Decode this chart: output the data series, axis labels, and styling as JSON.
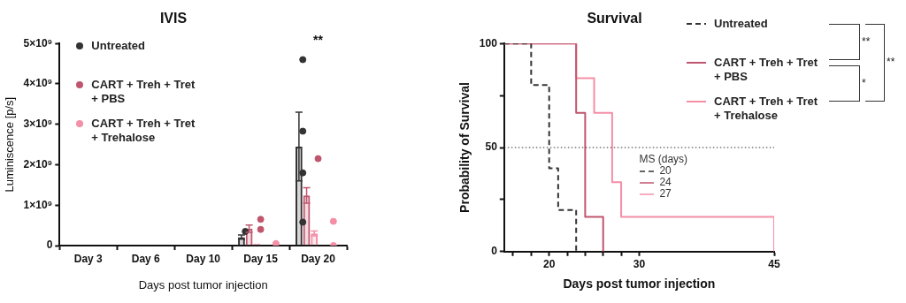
{
  "chart_data": [
    {
      "type": "bar",
      "title": "IVIS",
      "xlabel": "Days post tumor injection",
      "ylabel": "Luminiscence [p/s]",
      "categories": [
        "Day 3",
        "Day 6",
        "Day 10",
        "Day 15",
        "Day 20"
      ],
      "ylim": [
        0,
        5000000000
      ],
      "yticks": [
        0,
        {
          "value": 1000000000,
          "label": "1×10⁹"
        },
        {
          "value": 2000000000,
          "label": "2×10⁹"
        },
        {
          "value": 3000000000,
          "label": "3×10⁹"
        },
        {
          "value": 4000000000,
          "label": "4×10⁹"
        },
        {
          "value": 5000000000,
          "label": "5×10⁹"
        }
      ],
      "legend": "top left",
      "marker": "circle",
      "annotations": [
        "**"
      ],
      "series": [
        {
          "name": "Untreated",
          "color": "#333333",
          "values": [
            0,
            0,
            0,
            210000000,
            2450000000
          ],
          "errors": [
            null,
            null,
            null,
            50000000,
            850000000
          ]
        },
        {
          "name": "CART + Treh + Tret + PBS",
          "color": "#c0566e",
          "values": [
            0,
            0,
            0,
            420000000,
            1240000000
          ],
          "errors": [
            null,
            null,
            null,
            90000000,
            190000000
          ]
        },
        {
          "name": "CART + Treh + Tret + Trehalose",
          "color": "#f48fa6",
          "values": [
            0,
            0,
            0,
            50000000,
            300000000
          ],
          "errors": [
            null,
            null,
            null,
            null,
            60000000
          ]
        },
        {
          "type": "scatter",
          "color": "#333333",
          "x": [
            "Day 15",
            "Day 20",
            "Day 20",
            "Day 20",
            "Day 20"
          ],
          "values": [
            350000000,
            4600000000,
            2830000000,
            1800000000,
            580000000
          ]
        },
        {
          "type": "scatter",
          "color": "#c0566e",
          "x": [
            "Day 15",
            "Day 15",
            "Day 20"
          ],
          "values": [
            650000000,
            400000000,
            2150000000
          ]
        },
        {
          "type": "scatter",
          "color": "#f48fa6",
          "x": [
            "Day 15",
            "Day 20",
            "Day 20"
          ],
          "values": [
            50000000,
            600000000,
            0
          ]
        }
      ]
    },
    {
      "type": "step",
      "title": "Survival",
      "xlabel": "Days post tumor injection",
      "ylabel": "Probability of Survival",
      "xlim": [
        15,
        45
      ],
      "xticks": [
        {
          "value": 16,
          "label": null
        },
        {
          "value": 18,
          "label": null
        },
        20,
        {
          "value": 22,
          "label": null
        },
        {
          "value": 24,
          "label": null
        },
        {
          "value": 26,
          "label": null
        },
        {
          "value": 28,
          "label": null
        },
        30,
        45
      ],
      "ylim": [
        0,
        100
      ],
      "yticks": [
        0,
        {
          "value": 25,
          "label": null
        },
        50,
        {
          "value": 75,
          "label": null
        },
        100
      ],
      "legend": "right",
      "ref_lines": [
        {
          "axis": "y",
          "value": 50,
          "color": "#333333",
          "line_style": "dotted"
        }
      ],
      "annotations": [
        "MS (days)",
        "20",
        "24",
        "27",
        "**",
        "*",
        "**"
      ],
      "series": [
        {
          "name": "Untreated",
          "color": "#333333",
          "line_style": "dashed",
          "x": [
            15,
            18,
            20,
            21,
            23
          ],
          "values": [
            100,
            80,
            40,
            20,
            0
          ]
        },
        {
          "name": "CART + Treh + Tret + PBS",
          "color": "#c0566e",
          "x": [
            15,
            23,
            24,
            26
          ],
          "values": [
            100,
            66.7,
            16.7,
            0
          ]
        },
        {
          "name": "CART + Treh + Tret + Trehalose",
          "color": "#f48fa6",
          "x": [
            15,
            23,
            25,
            27,
            28,
            45
          ],
          "values": [
            100,
            83.3,
            66.7,
            33.3,
            16.7,
            0
          ]
        }
      ]
    }
  ]
}
